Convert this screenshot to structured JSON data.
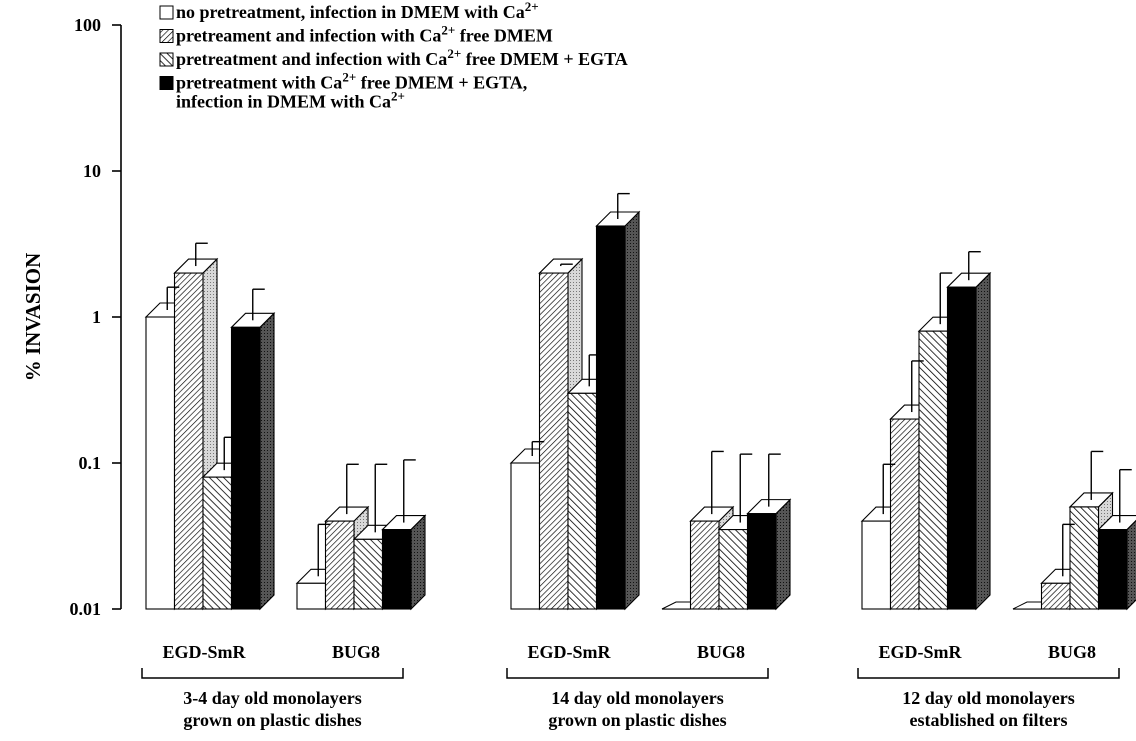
{
  "chart_data": {
    "type": "bar",
    "yscale": "log",
    "ylim": [
      0.01,
      100
    ],
    "ylabel": "% INVASION",
    "yticks": [
      {
        "value": 100,
        "label": "100"
      },
      {
        "value": 10,
        "label": "10"
      },
      {
        "value": 1,
        "label": "1"
      },
      {
        "value": 0.1,
        "label": "0.1"
      },
      {
        "value": 0.01,
        "label": "0.01"
      }
    ],
    "legend": {
      "placement": "top",
      "entries": [
        {
          "pattern": "white",
          "lines": [
            {
              "segments": [
                {
                  "t": "no pretreatment, infection in DMEM with Ca"
                },
                {
                  "t": "2+",
                  "sup": true
                }
              ]
            }
          ]
        },
        {
          "pattern": "dense-hatch",
          "lines": [
            {
              "segments": [
                {
                  "t": "pretreament and infection with Ca"
                },
                {
                  "t": "2+",
                  "sup": true
                },
                {
                  "t": " free DMEM"
                }
              ]
            }
          ]
        },
        {
          "pattern": "hatch",
          "lines": [
            {
              "segments": [
                {
                  "t": "pretreatment and infection with Ca"
                },
                {
                  "t": "2+",
                  "sup": true
                },
                {
                  "t": " free DMEM + EGTA"
                }
              ]
            }
          ]
        },
        {
          "pattern": "black",
          "lines": [
            {
              "segments": [
                {
                  "t": "pretreatment with Ca"
                },
                {
                  "t": "2+",
                  "sup": true
                },
                {
                  "t": " free DMEM + EGTA,"
                }
              ]
            },
            {
              "segments": [
                {
                  "t": "infection in DMEM with Ca"
                },
                {
                  "t": "2+",
                  "sup": true
                }
              ]
            }
          ]
        }
      ]
    },
    "panels": [
      {
        "caption": [
          "3-4 day old monolayers",
          "grown on plastic dishes"
        ],
        "strains": [
          {
            "label": "EGD-SmR",
            "values": [
              1.0,
              2.0,
              0.08,
              0.85
            ],
            "errors": [
              1.6,
              3.2,
              0.15,
              1.55
            ]
          },
          {
            "label": "BUG8",
            "values": [
              0.015,
              0.04,
              0.03,
              0.035
            ],
            "errors": [
              0.038,
              0.098,
              0.098,
              0.105
            ]
          }
        ]
      },
      {
        "caption": [
          "14 day old monolayers",
          "grown on plastic dishes"
        ],
        "strains": [
          {
            "label": "EGD-SmR",
            "values": [
              0.1,
              2.0,
              0.3,
              4.2
            ],
            "errors": [
              0.14,
              2.3,
              0.55,
              7.0
            ]
          },
          {
            "label": "BUG8",
            "values": [
              0.0095,
              0.04,
              0.035,
              0.045
            ],
            "errors": [
              null,
              0.12,
              0.115,
              0.115
            ]
          }
        ]
      },
      {
        "caption": [
          "12 day old monolayers",
          "established on filters"
        ],
        "strains": [
          {
            "label": "EGD-SmR",
            "values": [
              0.04,
              0.2,
              0.8,
              1.6
            ],
            "errors": [
              0.098,
              0.5,
              2.0,
              2.8
            ]
          },
          {
            "label": "BUG8",
            "values": [
              0.0095,
              0.015,
              0.05,
              0.035
            ],
            "errors": [
              null,
              0.038,
              0.12,
              0.09
            ]
          }
        ]
      }
    ]
  }
}
